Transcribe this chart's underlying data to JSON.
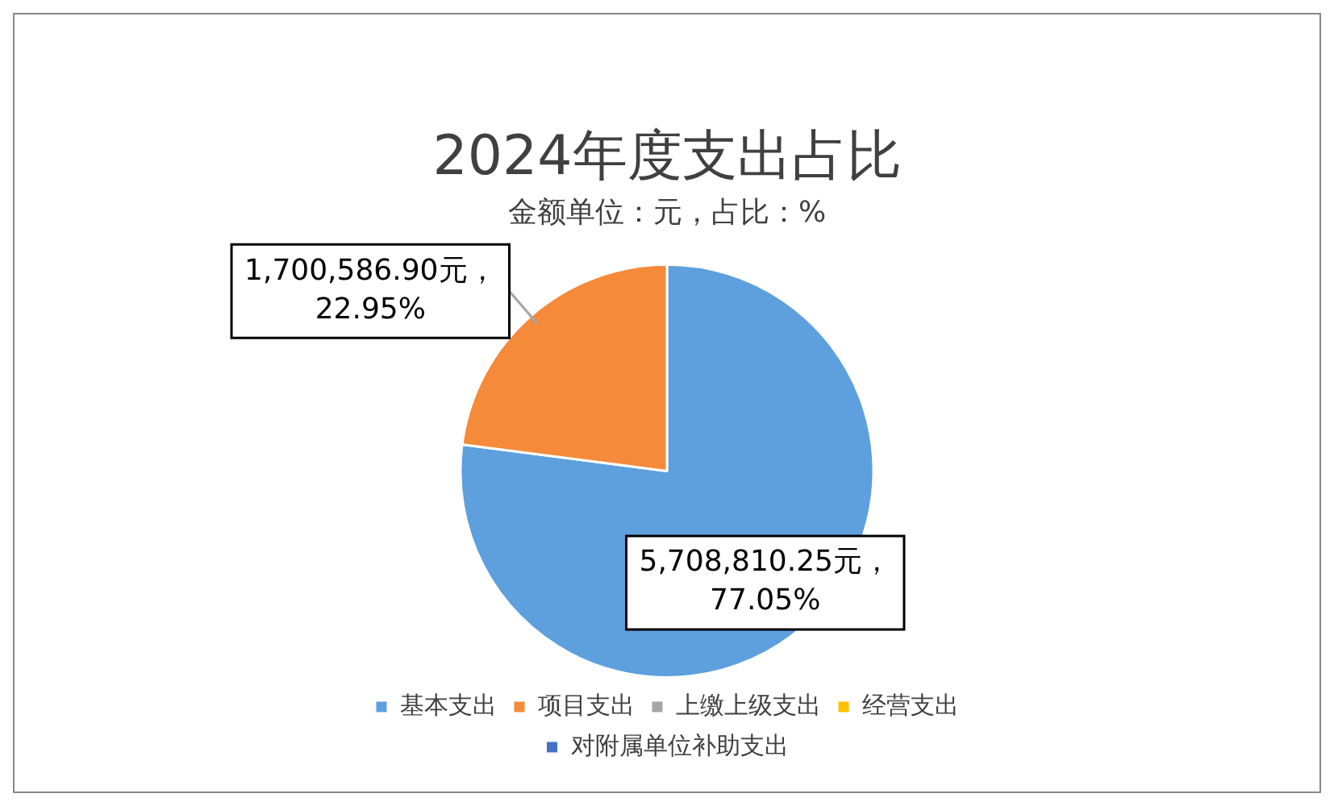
{
  "chart_data": {
    "type": "pie",
    "title": "2024年度支出占比",
    "subtitle": "金额单位：元，占比：%",
    "categories": [
      "基本支出",
      "项目支出",
      "上缴上级支出",
      "经营支出",
      "对附属单位补助支出"
    ],
    "values": [
      5708810.25,
      1700586.9,
      0,
      0,
      0
    ],
    "colors": [
      "#5e9fdd",
      "#f58a3a",
      "#a5a5a5",
      "#ffc000",
      "#4472c4"
    ],
    "value_labels": [
      "5,708,810.25元，\n77.05%",
      "1,700,586.90元，\n22.95%",
      null,
      null,
      null
    ],
    "legend": "bottom"
  }
}
